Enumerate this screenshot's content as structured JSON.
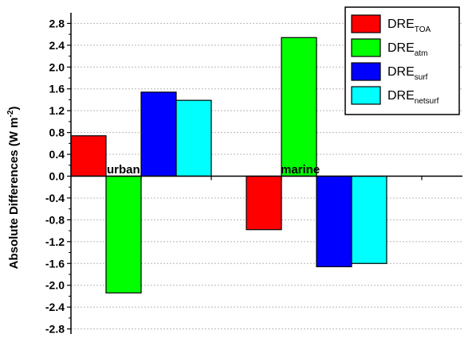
{
  "chart_data": {
    "type": "bar",
    "categories": [
      "urban",
      "marine"
    ],
    "ylabel": "Absolute Differences (W m-2)",
    "ylabel_parts": {
      "main": "Absolute Differences (W m",
      "sup": "-2",
      "close": ")"
    },
    "ylim": [
      -2.9,
      3.0
    ],
    "yticks": [
      "2.8",
      "2.4",
      "2.0",
      "1.6",
      "1.2",
      "0.8",
      "0.4",
      "0.0",
      "-0.4",
      "-0.8",
      "-1.2",
      "-1.6",
      "-2.0",
      "-2.4",
      "-2.8"
    ],
    "ytick_values": [
      2.8,
      2.4,
      2.0,
      1.6,
      1.2,
      0.8,
      0.4,
      0.0,
      -0.4,
      -0.8,
      -1.2,
      -1.6,
      -2.0,
      -2.4,
      -2.8
    ],
    "grid": true,
    "legend_position": "top-right",
    "series": [
      {
        "name": "DRE_TOA",
        "label_main": "DRE",
        "label_sub": "TOA",
        "color": "#ff0000",
        "values": [
          0.74,
          -0.98
        ]
      },
      {
        "name": "DRE_atm",
        "label_main": "DRE",
        "label_sub": "atm",
        "color": "#00ff00",
        "values": [
          -2.14,
          2.54
        ]
      },
      {
        "name": "DRE_surf",
        "label_main": "DRE",
        "label_sub": "surf",
        "color": "#0000ff",
        "values": [
          1.54,
          -1.66
        ]
      },
      {
        "name": "DRE_netsurf",
        "label_main": "DRE",
        "label_sub": "netsurf",
        "color": "#00ffff",
        "values": [
          1.39,
          -1.6
        ]
      }
    ]
  }
}
